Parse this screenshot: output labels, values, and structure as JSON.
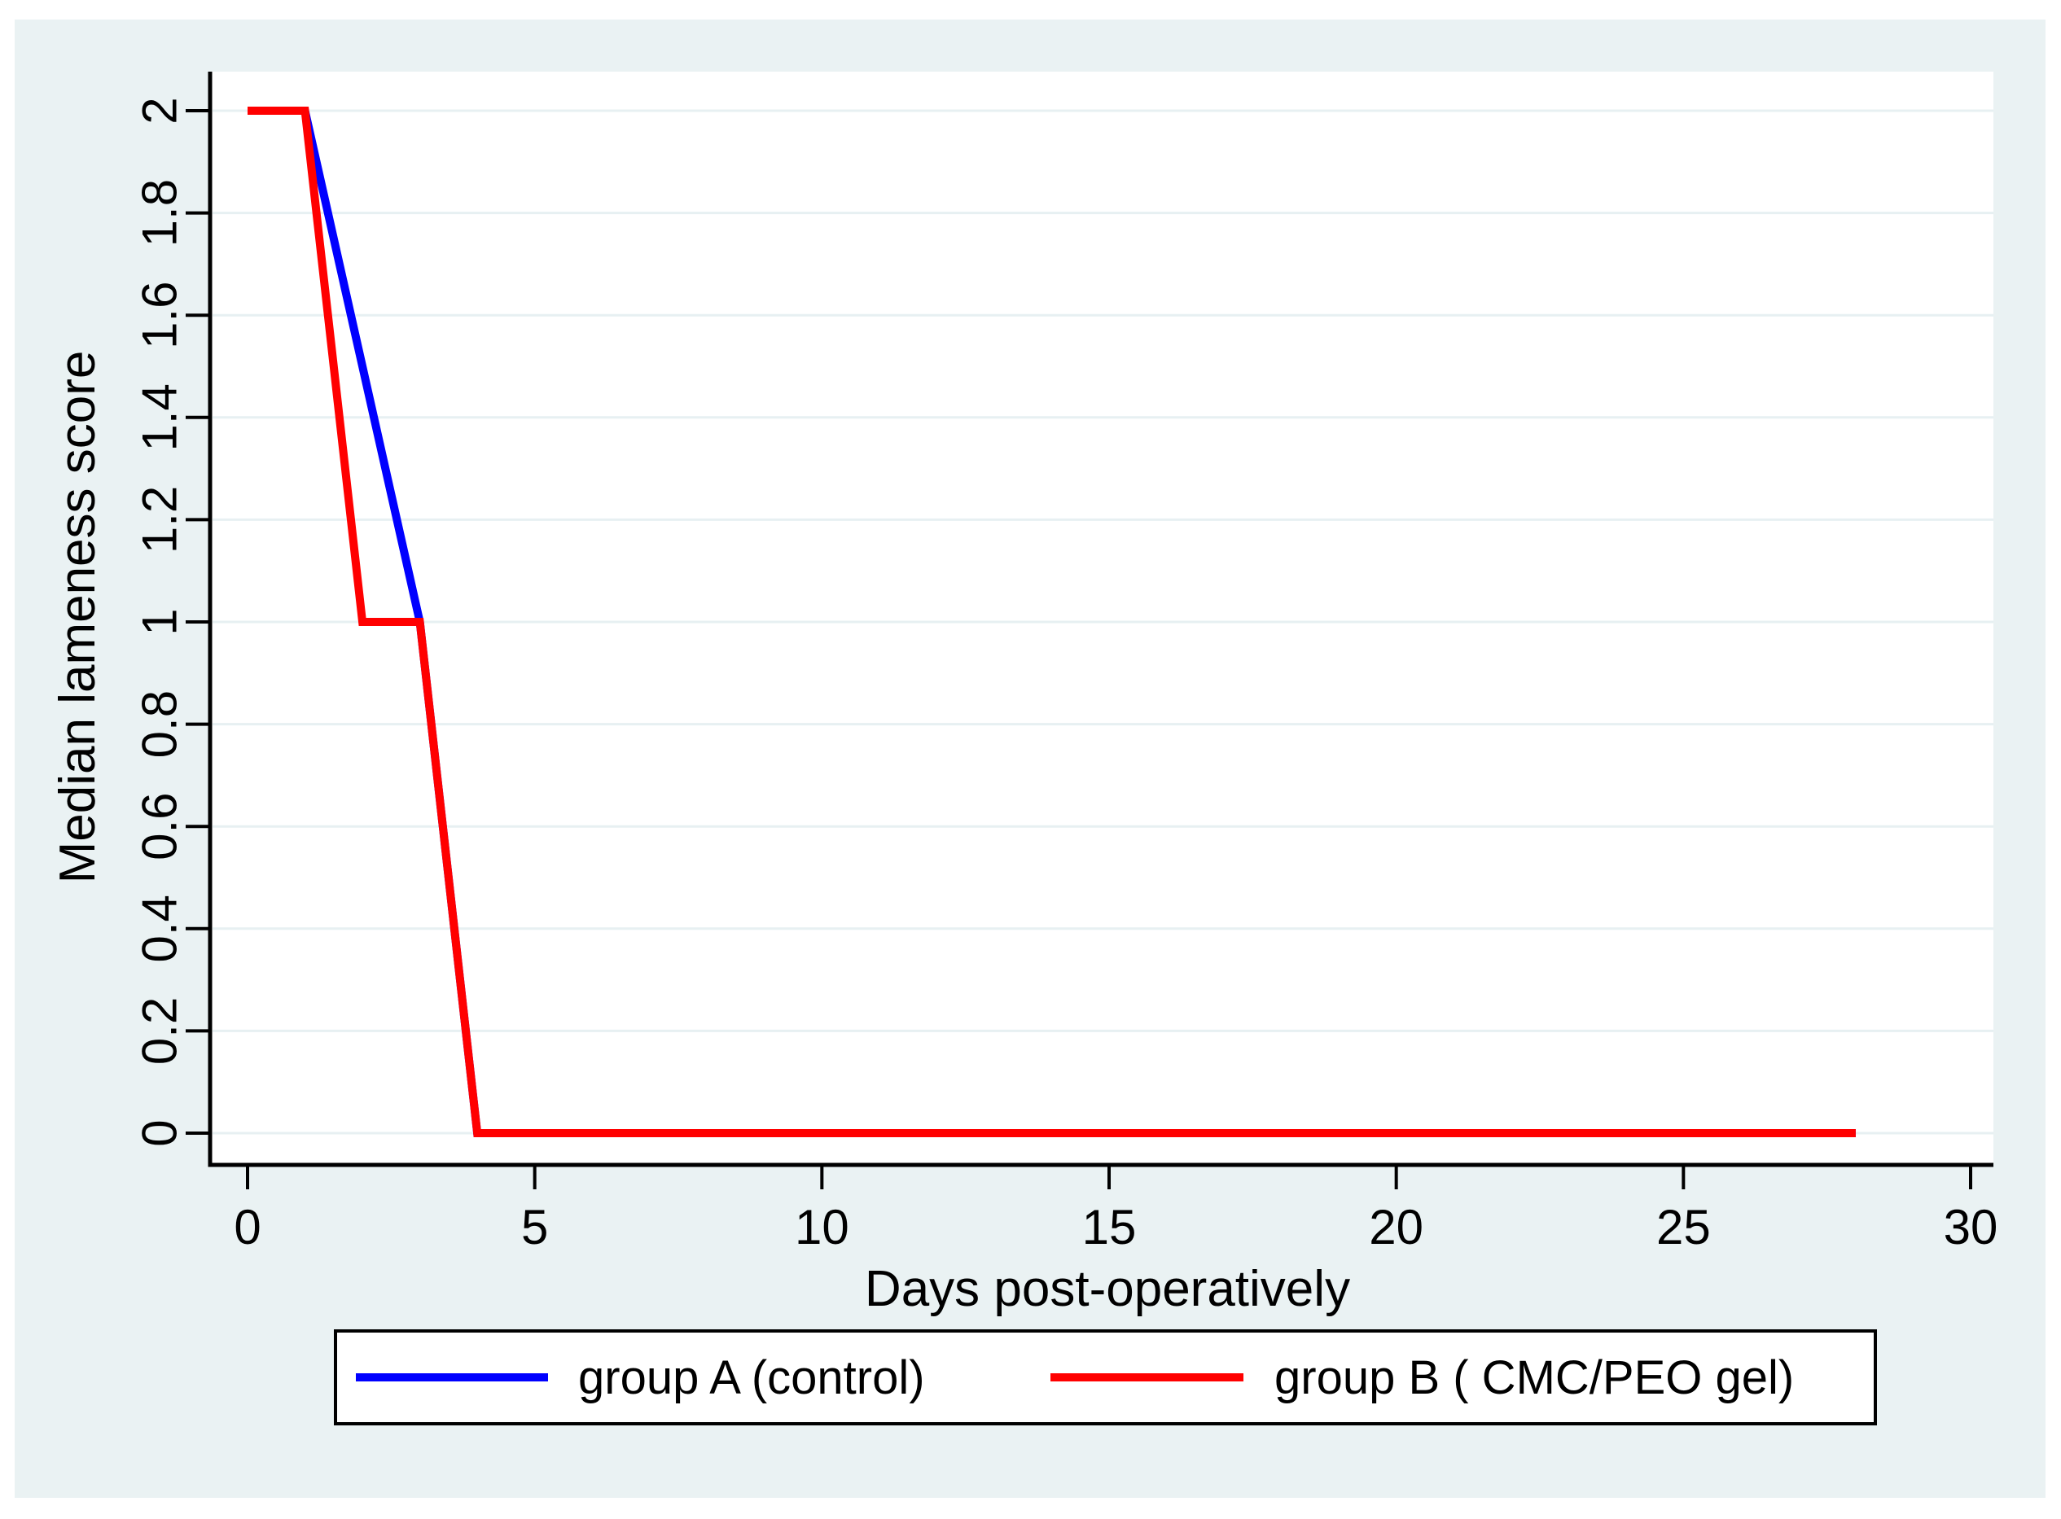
{
  "figure": {
    "colors": {
      "page_background": "#FFFFFF",
      "region_background": "#EAF2F3",
      "plot_background": "#FFFFFF",
      "grid": "#E7F0F2",
      "axis": "#000000",
      "text": "#000000",
      "legend_background": "#FFFFFF",
      "legend_border": "#000000",
      "group_a": "#0000FF",
      "group_b": "#FF0000"
    }
  },
  "chart_data": {
    "type": "line",
    "title": "",
    "xlabel": "Days post-operatively",
    "ylabel": "Median lameness score",
    "xlim": [
      0,
      30
    ],
    "ylim": [
      0,
      2
    ],
    "x_ticks": [
      0,
      5,
      10,
      15,
      20,
      25,
      30
    ],
    "x_tick_labels": [
      "0",
      "5",
      "10",
      "15",
      "20",
      "25",
      "30"
    ],
    "y_ticks": [
      0,
      0.2,
      0.4,
      0.6,
      0.8,
      1,
      1.2,
      1.4,
      1.6,
      1.8,
      2
    ],
    "y_tick_labels": [
      "0",
      "0.2",
      "0.4",
      "0.6",
      "0.8",
      "1",
      "1.2",
      "1.4",
      "1.6",
      "1.8",
      "2"
    ],
    "grid": "horizontal-only",
    "legend_position": "bottom",
    "series": [
      {
        "name": "group A (control)",
        "color": "#0000FF",
        "points": [
          [
            0,
            2
          ],
          [
            1,
            2
          ],
          [
            3,
            1
          ],
          [
            4,
            0
          ],
          [
            28,
            0
          ]
        ]
      },
      {
        "name": "group B ( CMC/PEO gel)",
        "color": "#FF0000",
        "points": [
          [
            0,
            2
          ],
          [
            1,
            2
          ],
          [
            2,
            1
          ],
          [
            3,
            1
          ],
          [
            4,
            0
          ],
          [
            28,
            0
          ]
        ]
      }
    ]
  }
}
